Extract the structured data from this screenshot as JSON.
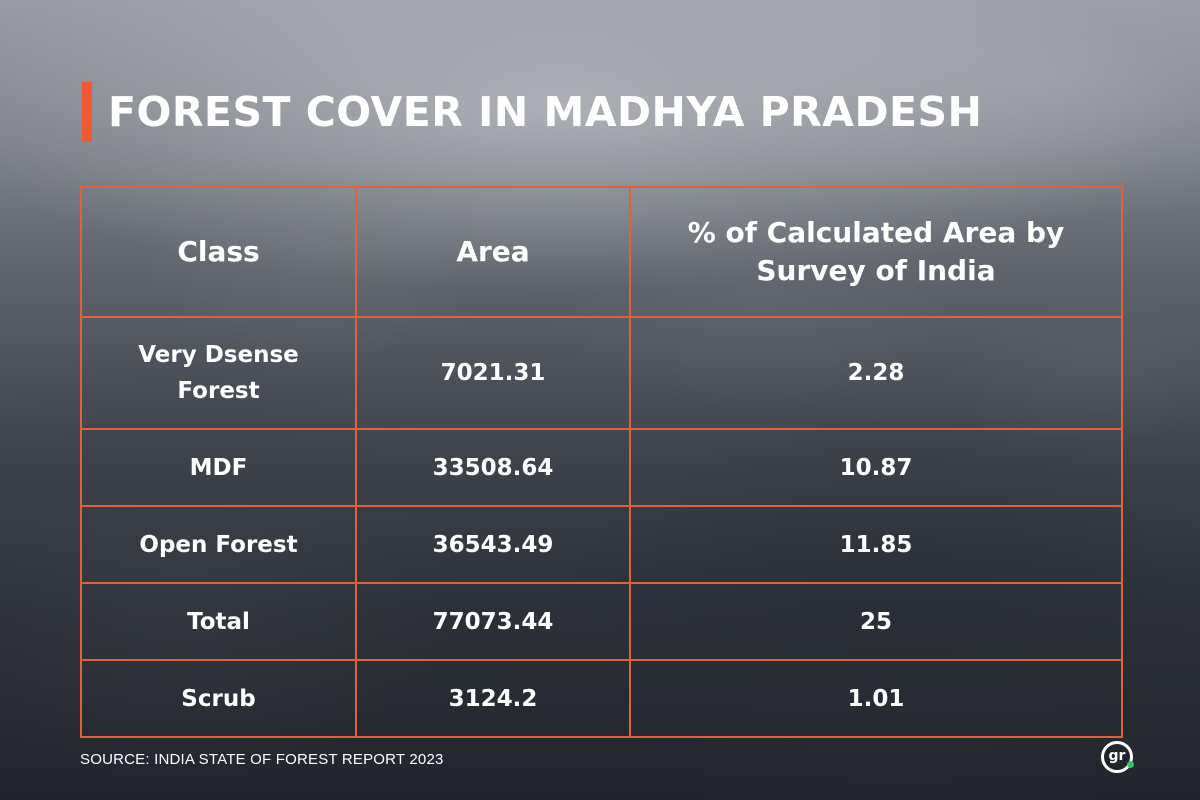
{
  "title": "FOREST COVER IN MADHYA PRADESH",
  "source": "SOURCE: INDIA STATE OF FOREST REPORT 2023",
  "logo": {
    "text": "gr",
    "icon": "gr-logo-icon",
    "dot_color": "#36c46b"
  },
  "colors": {
    "accent": "#ee5a33",
    "table_border": "#e0613c",
    "text": "#ffffff"
  },
  "chart_data": {
    "type": "table",
    "columns": [
      "Class",
      "Area",
      "% of Calculated Area by Survey of India"
    ],
    "rows": [
      {
        "class": "Very Dsense Forest",
        "area": "7021.31",
        "percent": "2.28"
      },
      {
        "class": "MDF",
        "area": "33508.64",
        "percent": "10.87"
      },
      {
        "class": "Open Forest",
        "area": "36543.49",
        "percent": "11.85"
      },
      {
        "class": "Total",
        "area": "77073.44",
        "percent": "25"
      },
      {
        "class": "Scrub",
        "area": "3124.2",
        "percent": "1.01"
      }
    ]
  }
}
